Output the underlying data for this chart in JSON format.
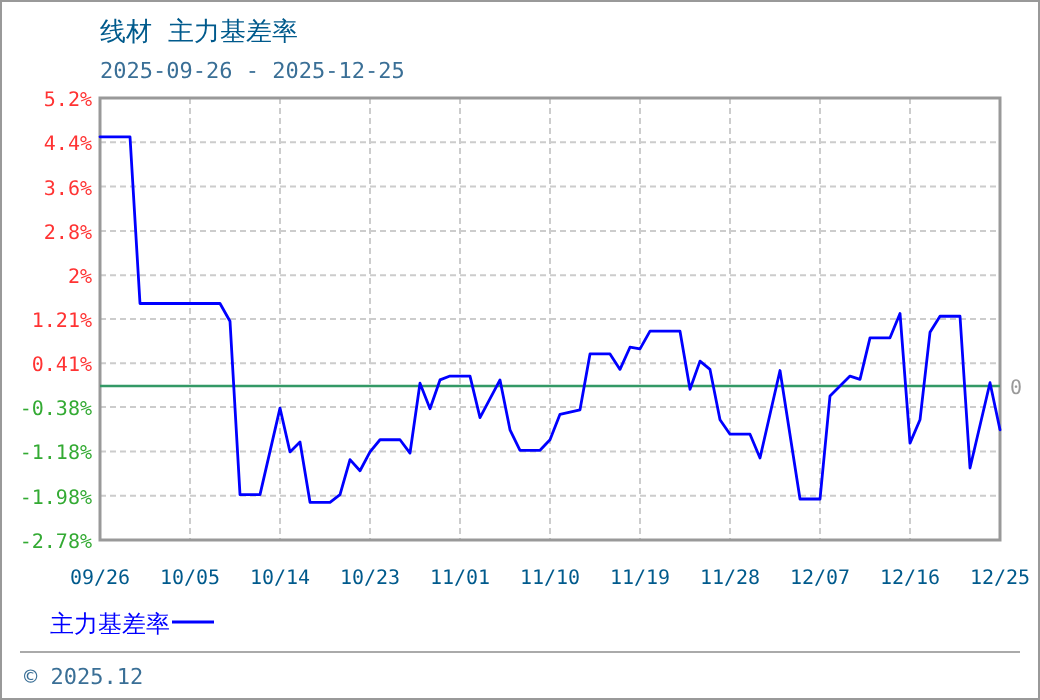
{
  "chart_data": {
    "type": "line",
    "title": "线材 主力基差率",
    "subtitle": "2025-09-26 - 2025-12-25",
    "x": [
      "2025-09-26",
      "2025-09-29",
      "2025-09-30",
      "2025-10-08",
      "2025-10-09",
      "2025-10-10",
      "2025-10-12",
      "2025-10-14",
      "2025-10-15",
      "2025-10-16",
      "2025-10-17",
      "2025-10-19",
      "2025-10-20",
      "2025-10-21",
      "2025-10-22",
      "2025-10-23",
      "2025-10-24",
      "2025-10-26",
      "2025-10-27",
      "2025-10-28",
      "2025-10-29",
      "2025-10-30",
      "2025-10-31",
      "2025-11-02",
      "2025-11-03",
      "2025-11-05",
      "2025-11-06",
      "2025-11-07",
      "2025-11-09",
      "2025-11-10",
      "2025-11-11",
      "2025-11-13",
      "2025-11-14",
      "2025-11-16",
      "2025-11-17",
      "2025-11-18",
      "2025-11-19",
      "2025-11-20",
      "2025-11-23",
      "2025-11-24",
      "2025-11-25",
      "2025-11-26",
      "2025-11-27",
      "2025-11-28",
      "2025-11-30",
      "2025-12-01",
      "2025-12-03",
      "2025-12-05",
      "2025-12-07",
      "2025-12-08",
      "2025-12-10",
      "2025-12-11",
      "2025-12-12",
      "2025-12-14",
      "2025-12-15",
      "2025-12-16",
      "2025-12-17",
      "2025-12-18",
      "2025-12-19",
      "2025-12-21",
      "2025-12-22",
      "2025-12-24",
      "2025-12-25"
    ],
    "series": [
      {
        "name": "主力基差率",
        "color": "#0000ff",
        "values": [
          4.5,
          4.5,
          1.49,
          1.49,
          1.17,
          -1.96,
          -1.96,
          -0.4,
          -1.19,
          -1.01,
          -2.1,
          -2.1,
          -1.96,
          -1.33,
          -1.53,
          -1.19,
          -0.97,
          -0.97,
          -1.21,
          0.05,
          -0.41,
          0.11,
          0.18,
          0.18,
          -0.57,
          0.11,
          -0.79,
          -1.16,
          -1.16,
          -0.97,
          -0.51,
          -0.43,
          0.58,
          0.58,
          0.3,
          0.7,
          0.67,
          0.99,
          0.99,
          -0.06,
          0.45,
          0.3,
          -0.61,
          -0.87,
          -0.87,
          -1.3,
          0.28,
          -2.04,
          -2.04,
          -0.18,
          0.18,
          0.12,
          0.87,
          0.87,
          1.31,
          -1.03,
          -0.61,
          0.97,
          1.26,
          1.26,
          -1.48,
          0.06,
          -0.79
        ]
      }
    ],
    "xlim": [
      "2025-09-26",
      "2025-12-25"
    ],
    "xticks": [
      {
        "value": "2025-09-26",
        "label": "09/26"
      },
      {
        "value": "2025-10-05",
        "label": "10/05"
      },
      {
        "value": "2025-10-14",
        "label": "10/14"
      },
      {
        "value": "2025-10-23",
        "label": "10/23"
      },
      {
        "value": "2025-11-01",
        "label": "11/01"
      },
      {
        "value": "2025-11-10",
        "label": "11/10"
      },
      {
        "value": "2025-11-19",
        "label": "11/19"
      },
      {
        "value": "2025-11-28",
        "label": "11/28"
      },
      {
        "value": "2025-12-07",
        "label": "12/07"
      },
      {
        "value": "2025-12-16",
        "label": "12/16"
      },
      {
        "value": "2025-12-25",
        "label": "12/25"
      }
    ],
    "ylim": [
      -2.78,
      5.2
    ],
    "yticks": [
      {
        "value": 5.2,
        "label": "5.2%"
      },
      {
        "value": 4.4,
        "label": "4.4%"
      },
      {
        "value": 3.6,
        "label": "3.6%"
      },
      {
        "value": 2.8,
        "label": "2.8%"
      },
      {
        "value": 2,
        "label": "2%"
      },
      {
        "value": 1.21,
        "label": "1.21%"
      },
      {
        "value": 0.41,
        "label": "0.41%"
      },
      {
        "value": -0.38,
        "label": "-0.38%"
      },
      {
        "value": -1.18,
        "label": "-1.18%"
      },
      {
        "value": -1.98,
        "label": "-1.98%"
      },
      {
        "value": -2.78,
        "label": "-2.78%"
      }
    ],
    "ref_lines": [
      {
        "axis": "y",
        "value": 0,
        "label": "0",
        "color": "#339966"
      }
    ],
    "grid": true,
    "legend": "bottom left",
    "annotations": [
      "© 2025.12"
    ]
  }
}
